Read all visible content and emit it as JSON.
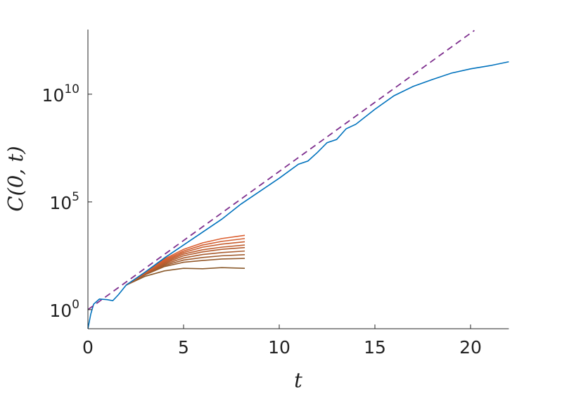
{
  "chart_data": {
    "type": "line",
    "log_y": true,
    "xlabel": "t",
    "ylabel": "C(0, t)",
    "xlim": [
      0,
      22
    ],
    "ylim": [
      0.13,
      10000000000000.0
    ],
    "xticks": [
      0,
      5,
      10,
      15,
      20
    ],
    "yticks": [
      {
        "value": 1,
        "label": "10",
        "exp": "0"
      },
      {
        "value": 100000,
        "label": "10",
        "exp": "5"
      },
      {
        "value": 10000000000,
        "label": "10",
        "exp": "10"
      }
    ],
    "series": [
      {
        "color": "#8a5a2c",
        "x": [
          2,
          3,
          4,
          5,
          6,
          7,
          8.2
        ],
        "values": [
          13.8,
          35.5,
          63,
          83,
          79,
          89,
          83
        ]
      },
      {
        "color": "#955a2c",
        "x": [
          2,
          3,
          4,
          5,
          6,
          7,
          8.2
        ],
        "values": [
          13.8,
          41.7,
          100,
          158,
          191,
          224,
          240
        ]
      },
      {
        "color": "#a05b2d",
        "x": [
          2,
          3,
          4,
          5,
          6,
          7,
          8.2
        ],
        "values": [
          13.8,
          43.7,
          112,
          200,
          263,
          316,
          355
        ]
      },
      {
        "color": "#aa5c2e",
        "x": [
          2,
          3,
          4,
          5,
          6,
          7,
          8.2
        ],
        "values": [
          13.8,
          45.7,
          126,
          251,
          363,
          447,
          525
        ]
      },
      {
        "color": "#b45c2e",
        "x": [
          2,
          3,
          4,
          5,
          6,
          7,
          8.2
        ],
        "values": [
          13.8,
          47.9,
          141,
          316,
          479,
          631,
          759
        ]
      },
      {
        "color": "#be5d2f",
        "x": [
          2,
          3,
          4,
          5,
          6,
          7,
          8.2
        ],
        "values": [
          13.8,
          49,
          158,
          380,
          603,
          794,
          1000
        ]
      },
      {
        "color": "#c85e2f",
        "x": [
          2,
          3,
          4,
          5,
          6,
          7,
          8.2
        ],
        "values": [
          13.8,
          50.1,
          178,
          447,
          794,
          1096,
          1413
        ]
      },
      {
        "color": "#d25e30",
        "x": [
          2,
          3,
          4,
          5,
          6,
          7,
          8.2
        ],
        "values": [
          13.8,
          50.1,
          200,
          525,
          1000,
          1479,
          1995
        ]
      },
      {
        "color": "#dc5f30",
        "x": [
          2,
          3,
          4,
          5,
          6,
          7,
          8.2
        ],
        "values": [
          13.8,
          52.5,
          224,
          631,
          1259,
          1995,
          2818
        ]
      },
      {
        "color": "#0072bd",
        "x": [
          0,
          0.15,
          0.3,
          0.6,
          1,
          1.3,
          1.6,
          2,
          3,
          4,
          5,
          6,
          7,
          8,
          9,
          10,
          11,
          11.5,
          12,
          12.5,
          13,
          13.5,
          14,
          15,
          16,
          17,
          18,
          19,
          20,
          21,
          22
        ],
        "values": [
          0.13,
          0.63,
          1.8,
          3.1,
          2.9,
          2.6,
          5,
          13.8,
          56,
          251,
          1000,
          3981,
          15849,
          79433,
          316228,
          1258925,
          5600000,
          7900000,
          20000000,
          56000000,
          79000000,
          250000000,
          400000000,
          2000000000,
          8500000000,
          23000000000,
          48000000000,
          95000000000,
          150000000000,
          210000000000,
          320000000000
        ]
      },
      {
        "color": "#7e2f8e",
        "dashed": true,
        "x": [
          0,
          20.2
        ],
        "values": [
          1,
          9100000000000
        ]
      }
    ]
  }
}
